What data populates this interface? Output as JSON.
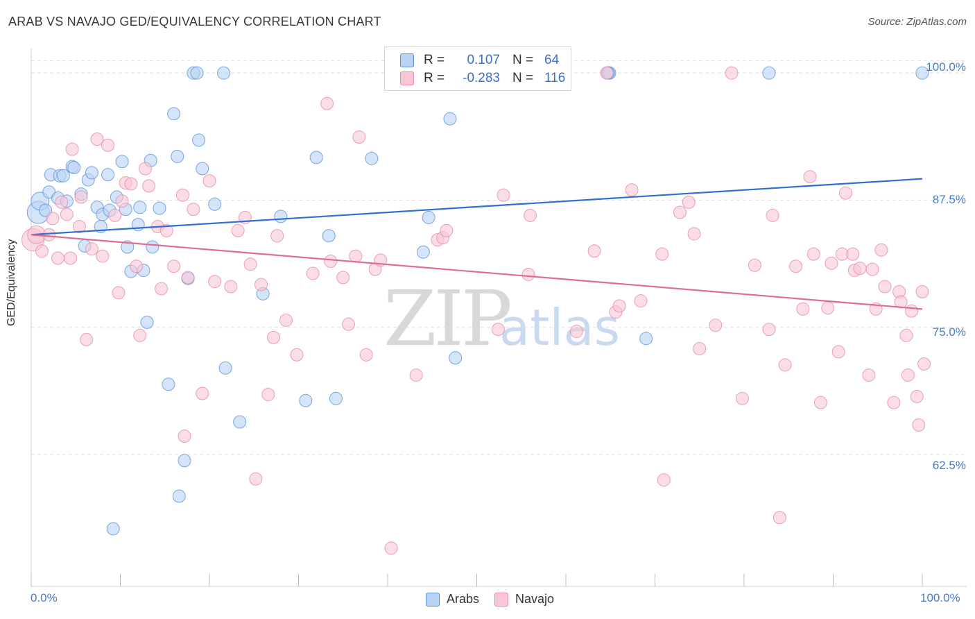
{
  "title": "ARAB VS NAVAJO GED/EQUIVALENCY CORRELATION CHART",
  "source": "Source: ZipAtlas.com",
  "watermark": {
    "zip": "ZIP",
    "atlas": "atlas"
  },
  "colors": {
    "arabs_fill": "#b9d3f5",
    "arabs_stroke": "#5b8fd8",
    "arabs_line": "#2f6fcf",
    "navajo_fill": "#f8c6d6",
    "navajo_stroke": "#e58aa8",
    "navajo_line": "#e06b96",
    "grid": "#dddddd",
    "tick_label": "#4a7bc8"
  },
  "legend": {
    "rows": [
      {
        "r_key": "R =",
        "r_val": "0.107",
        "n_key": "N =",
        "n_val": "64"
      },
      {
        "r_key": "R =",
        "r_val": "-0.283",
        "n_key": "N =",
        "n_val": "116"
      }
    ]
  },
  "bottom_legend": [
    "Arabs",
    "Navajo"
  ],
  "axes": {
    "ylabel": "GED/Equivalency",
    "yticks": [
      "100.0%",
      "87.5%",
      "75.0%",
      "62.5%"
    ],
    "xticks": [
      "0.0%",
      "100.0%"
    ]
  },
  "chart_data": {
    "type": "scatter",
    "title": "ARAB VS NAVAJO GED/EQUIVALENCY CORRELATION CHART",
    "xlabel": "",
    "ylabel": "GED/Equivalency",
    "xlim": [
      0,
      100
    ],
    "ylim": [
      50.9,
      102.4
    ],
    "yticks": [
      62.5,
      75.0,
      87.5,
      100.0
    ],
    "grid": "horizontal dashed",
    "legend_position": "top-center",
    "series": [
      {
        "name": "Arabs",
        "r": 0.107,
        "n": 64,
        "trend": {
          "x": [
            0,
            100
          ],
          "y": [
            84.1,
            89.6
          ]
        },
        "points": [
          [
            0.8,
            86.3,
            16
          ],
          [
            1.0,
            87.4,
            13
          ],
          [
            1.6,
            86.5,
            9
          ],
          [
            2.0,
            88.3,
            9
          ],
          [
            2.2,
            90.0,
            9
          ],
          [
            3.0,
            87.7,
            9
          ],
          [
            3.2,
            89.9,
            9
          ],
          [
            3.6,
            89.9,
            9
          ],
          [
            4.0,
            87.4,
            9
          ],
          [
            4.6,
            90.8,
            9
          ],
          [
            4.8,
            90.7,
            9
          ],
          [
            5.6,
            88.1,
            9
          ],
          [
            6.0,
            83.0,
            9
          ],
          [
            6.4,
            89.5,
            9
          ],
          [
            6.8,
            90.2,
            9
          ],
          [
            7.4,
            86.8,
            9
          ],
          [
            7.8,
            84.9,
            9
          ],
          [
            8.0,
            86.1,
            9
          ],
          [
            8.6,
            90.0,
            9
          ],
          [
            8.8,
            86.5,
            9
          ],
          [
            9.6,
            87.8,
            9
          ],
          [
            10.2,
            91.3,
            9
          ],
          [
            10.6,
            86.6,
            9
          ],
          [
            10.8,
            82.9,
            9
          ],
          [
            11.2,
            80.5,
            9
          ],
          [
            12.0,
            85.1,
            9
          ],
          [
            12.2,
            86.8,
            9
          ],
          [
            12.6,
            80.6,
            9
          ],
          [
            13.0,
            75.5,
            9
          ],
          [
            13.4,
            91.4,
            9
          ],
          [
            13.6,
            82.9,
            9
          ],
          [
            14.4,
            86.7,
            9
          ],
          [
            15.4,
            69.4,
            9
          ],
          [
            16.0,
            96.0,
            9
          ],
          [
            16.4,
            91.8,
            9
          ],
          [
            16.6,
            58.4,
            9
          ],
          [
            17.2,
            61.9,
            9
          ],
          [
            17.6,
            79.8,
            9
          ],
          [
            18.2,
            100.0,
            9
          ],
          [
            18.6,
            100.0,
            9
          ],
          [
            18.8,
            93.4,
            9
          ],
          [
            19.2,
            90.6,
            9
          ],
          [
            20.6,
            87.1,
            9
          ],
          [
            21.6,
            100.0,
            9
          ],
          [
            21.8,
            71.0,
            9
          ],
          [
            23.4,
            65.7,
            9
          ],
          [
            26.0,
            78.3,
            9
          ],
          [
            28.0,
            85.9,
            9
          ],
          [
            30.8,
            67.8,
            9
          ],
          [
            32.0,
            91.7,
            9
          ],
          [
            33.4,
            84.0,
            9
          ],
          [
            34.2,
            68.0,
            9
          ],
          [
            38.2,
            91.6,
            9
          ],
          [
            44.0,
            82.4,
            9
          ],
          [
            44.6,
            85.8,
            9
          ],
          [
            47.0,
            95.5,
            9
          ],
          [
            47.6,
            72.0,
            9
          ],
          [
            64.8,
            100.0,
            9
          ],
          [
            64.9,
            100.0,
            9
          ],
          [
            64.7,
            100.0,
            9
          ],
          [
            69.0,
            73.9,
            9
          ],
          [
            82.8,
            100.0,
            9
          ],
          [
            100.0,
            100.0,
            9
          ],
          [
            9.2,
            55.2,
            9
          ]
        ]
      },
      {
        "name": "Navajo",
        "r": -0.283,
        "n": 116,
        "trend": {
          "x": [
            0,
            100
          ],
          "y": [
            84.1,
            76.8
          ]
        },
        "points": [
          [
            0.2,
            83.6,
            16
          ],
          [
            0.6,
            84.1,
            13
          ],
          [
            1.2,
            82.5,
            9
          ],
          [
            2.0,
            84.1,
            9
          ],
          [
            2.4,
            85.7,
            9
          ],
          [
            3.0,
            81.8,
            9
          ],
          [
            3.4,
            87.3,
            9
          ],
          [
            4.0,
            86.1,
            9
          ],
          [
            4.4,
            81.8,
            9
          ],
          [
            4.6,
            92.5,
            9
          ],
          [
            5.4,
            84.9,
            9
          ],
          [
            5.6,
            87.8,
            9
          ],
          [
            6.2,
            73.8,
            9
          ],
          [
            6.8,
            82.7,
            9
          ],
          [
            7.4,
            93.5,
            9
          ],
          [
            8.0,
            82.0,
            9
          ],
          [
            8.6,
            92.9,
            9
          ],
          [
            9.4,
            86.0,
            9
          ],
          [
            9.8,
            78.4,
            9
          ],
          [
            10.2,
            87.4,
            9
          ],
          [
            10.6,
            89.2,
            9
          ],
          [
            11.2,
            89.1,
            9
          ],
          [
            11.8,
            81.0,
            9
          ],
          [
            12.2,
            74.2,
            9
          ],
          [
            12.8,
            90.6,
            9
          ],
          [
            13.2,
            88.9,
            9
          ],
          [
            14.2,
            84.9,
            9
          ],
          [
            14.6,
            78.8,
            9
          ],
          [
            15.2,
            84.5,
            9
          ],
          [
            16.0,
            81.0,
            9
          ],
          [
            17.0,
            88.0,
            9
          ],
          [
            17.2,
            64.3,
            9
          ],
          [
            17.6,
            79.9,
            9
          ],
          [
            18.2,
            86.6,
            9
          ],
          [
            19.2,
            68.5,
            9
          ],
          [
            20.0,
            89.4,
            9
          ],
          [
            20.6,
            79.5,
            9
          ],
          [
            22.4,
            79.0,
            9
          ],
          [
            23.2,
            84.5,
            9
          ],
          [
            24.0,
            85.8,
            9
          ],
          [
            24.6,
            81.2,
            9
          ],
          [
            25.2,
            60.1,
            9
          ],
          [
            25.8,
            79.2,
            9
          ],
          [
            26.6,
            68.4,
            9
          ],
          [
            27.2,
            74.0,
            9
          ],
          [
            27.6,
            84.0,
            9
          ],
          [
            28.6,
            75.7,
            9
          ],
          [
            29.8,
            72.3,
            9
          ],
          [
            31.6,
            80.3,
            9
          ],
          [
            33.2,
            97.0,
            9
          ],
          [
            33.6,
            81.5,
            9
          ],
          [
            35.0,
            79.9,
            9
          ],
          [
            35.6,
            75.3,
            9
          ],
          [
            36.4,
            82.0,
            9
          ],
          [
            36.8,
            93.7,
            9
          ],
          [
            37.6,
            72.3,
            9
          ],
          [
            38.6,
            80.7,
            9
          ],
          [
            39.2,
            81.6,
            9
          ],
          [
            40.4,
            53.3,
            9
          ],
          [
            43.2,
            70.3,
            9
          ],
          [
            45.6,
            83.6,
            9
          ],
          [
            46.2,
            83.8,
            9
          ],
          [
            46.6,
            84.5,
            9
          ],
          [
            52.4,
            74.8,
            9
          ],
          [
            53.0,
            88.0,
            9
          ],
          [
            55.8,
            80.2,
            9
          ],
          [
            56.0,
            86.0,
            9
          ],
          [
            61.2,
            74.6,
            9
          ],
          [
            63.2,
            82.5,
            9
          ],
          [
            64.6,
            100.0,
            9
          ],
          [
            65.6,
            76.5,
            9
          ],
          [
            66.0,
            77.1,
            9
          ],
          [
            67.4,
            88.5,
            9
          ],
          [
            68.4,
            77.6,
            9
          ],
          [
            70.8,
            82.2,
            9
          ],
          [
            71.0,
            60.0,
            9
          ],
          [
            72.8,
            86.3,
            9
          ],
          [
            73.8,
            87.3,
            9
          ],
          [
            74.4,
            84.2,
            9
          ],
          [
            75.0,
            72.9,
            9
          ],
          [
            76.8,
            75.2,
            9
          ],
          [
            78.6,
            100.0,
            9
          ],
          [
            79.8,
            68.0,
            9
          ],
          [
            81.2,
            81.1,
            9
          ],
          [
            82.8,
            74.8,
            9
          ],
          [
            83.2,
            86.0,
            9
          ],
          [
            84.0,
            56.3,
            9
          ],
          [
            84.6,
            71.3,
            9
          ],
          [
            85.8,
            81.0,
            9
          ],
          [
            86.6,
            76.8,
            9
          ],
          [
            87.4,
            89.8,
            9
          ],
          [
            87.8,
            82.2,
            9
          ],
          [
            88.6,
            67.6,
            9
          ],
          [
            89.4,
            76.9,
            9
          ],
          [
            89.8,
            81.3,
            9
          ],
          [
            90.6,
            72.6,
            9
          ],
          [
            91.0,
            82.2,
            9
          ],
          [
            91.4,
            88.2,
            9
          ],
          [
            92.2,
            82.2,
            9
          ],
          [
            92.4,
            80.6,
            9
          ],
          [
            93.0,
            80.8,
            9
          ],
          [
            94.0,
            70.3,
            9
          ],
          [
            94.4,
            80.7,
            9
          ],
          [
            94.8,
            76.8,
            9
          ],
          [
            95.4,
            82.6,
            9
          ],
          [
            95.8,
            79.0,
            9
          ],
          [
            96.8,
            67.6,
            9
          ],
          [
            97.4,
            78.5,
            9
          ],
          [
            97.6,
            77.5,
            9
          ],
          [
            98.2,
            74.2,
            9
          ],
          [
            98.4,
            70.3,
            9
          ],
          [
            98.8,
            76.6,
            9
          ],
          [
            99.4,
            68.2,
            9
          ],
          [
            99.6,
            65.4,
            9
          ],
          [
            100.0,
            78.5,
            9
          ],
          [
            100.2,
            71.4,
            9
          ]
        ]
      }
    ]
  }
}
